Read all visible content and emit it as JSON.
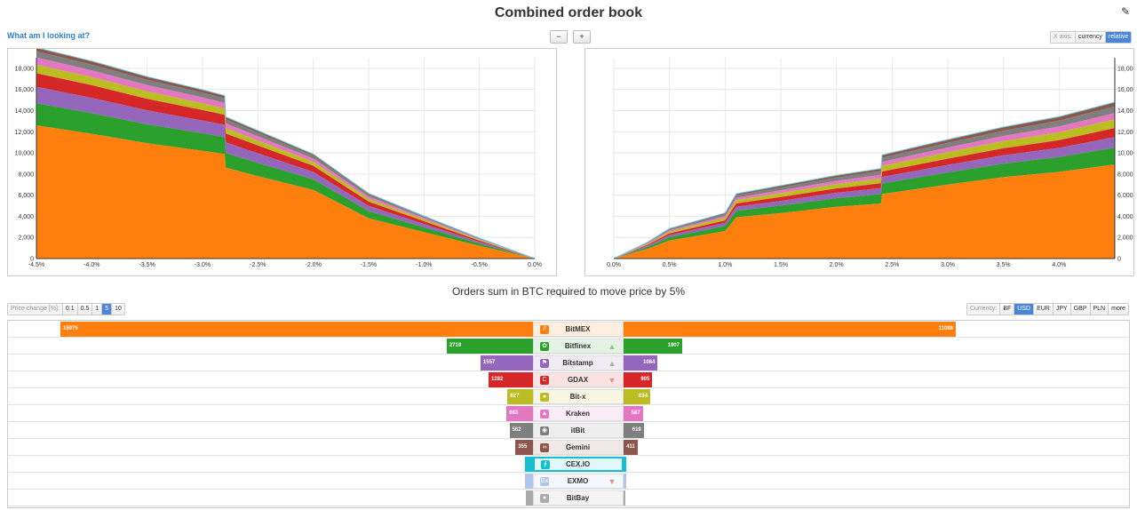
{
  "header": {
    "title": "Combined order book",
    "help_link": "What am I looking at?"
  },
  "toolbar": {
    "zoom_out_icon": "zoom-out-icon",
    "zoom_in_icon": "zoom-in-icon",
    "xaxis_label": "X axis:",
    "xaxis_options": [
      "currency",
      "relative"
    ],
    "xaxis_selected": "relative"
  },
  "bottom": {
    "subtitle": "Orders sum in BTC required to move price by 5%",
    "price_change_label": "Price change [%]:",
    "price_change_options": [
      "0.1",
      "0.5",
      "1",
      "5",
      "10"
    ],
    "price_change_selected": "5",
    "currency_label": "Currency:",
    "currency_options": [
      "ɃF",
      "USD",
      "EUR",
      "JPY",
      "GBP",
      "PLN",
      "more"
    ],
    "currency_selected": "USD"
  },
  "colors": {
    "BitMEX": "#ff7f0e",
    "Bitfinex": "#2ca02c",
    "Bitstamp": "#9467bd",
    "GDAX": "#d62728",
    "Bit-x": "#bcbd22",
    "Kraken": "#e377c2",
    "itBit": "#7f7f7f",
    "Gemini": "#8c564b",
    "CEX.IO": "#17becf",
    "EXMO": "#aec7e8",
    "BitBay": "#aaaaaa"
  },
  "chart_data": [
    {
      "type": "area",
      "side": "bids",
      "stacked": true,
      "xlabel": "",
      "ylabel": "",
      "xlim": [
        -4.5,
        0.0
      ],
      "ylim": [
        0,
        19000
      ],
      "x_ticks": [
        "-4.5%",
        "-4.0%",
        "-3.5%",
        "-3.0%",
        "-2.5%",
        "-2.0%",
        "-1.5%",
        "-1.0%",
        "-0.5%",
        "0.0%"
      ],
      "y_ticks": [
        "0",
        "2,000",
        "4,000",
        "6,000",
        "8,000",
        "10,000",
        "12,000",
        "14,000",
        "16,000",
        "18,000"
      ],
      "x": [
        -4.5,
        -4.0,
        -3.5,
        -3.0,
        -2.8,
        -2.79,
        -2.5,
        -2.0,
        -1.5,
        -1.0,
        -0.5,
        0.0
      ],
      "series": [
        {
          "name": "BitMEX",
          "values": [
            12600,
            11800,
            10900,
            10200,
            9900,
            8600,
            7800,
            6500,
            3800,
            2500,
            1200,
            0
          ]
        },
        {
          "name": "Bitfinex",
          "values": [
            2100,
            1950,
            1800,
            1650,
            1600,
            1400,
            1250,
            1000,
            700,
            450,
            220,
            0
          ]
        },
        {
          "name": "Bitstamp",
          "values": [
            1550,
            1450,
            1320,
            1200,
            1150,
            1000,
            900,
            700,
            480,
            320,
            150,
            0
          ]
        },
        {
          "name": "GDAX",
          "values": [
            1280,
            1200,
            1100,
            1000,
            950,
            820,
            740,
            580,
            400,
            260,
            120,
            0
          ]
        },
        {
          "name": "Bit-x",
          "values": [
            820,
            770,
            700,
            640,
            610,
            530,
            470,
            370,
            260,
            170,
            80,
            0
          ]
        },
        {
          "name": "Kraken",
          "values": [
            680,
            640,
            590,
            540,
            510,
            440,
            400,
            310,
            220,
            140,
            70,
            0
          ]
        },
        {
          "name": "itBit",
          "values": [
            580,
            540,
            500,
            460,
            430,
            380,
            340,
            260,
            190,
            120,
            60,
            0
          ]
        },
        {
          "name": "Gemini",
          "values": [
            350,
            330,
            300,
            280,
            260,
            230,
            210,
            160,
            110,
            70,
            35,
            0
          ]
        }
      ]
    },
    {
      "type": "area",
      "side": "asks",
      "stacked": true,
      "xlabel": "",
      "ylabel": "",
      "xlim": [
        0.0,
        4.5
      ],
      "ylim": [
        0,
        19000
      ],
      "x_ticks": [
        "0.0%",
        "0.5%",
        "1.0%",
        "1.5%",
        "2.0%",
        "2.5%",
        "3.0%",
        "3.5%",
        "4.0%"
      ],
      "y_ticks": [
        "0",
        "2,000",
        "4,000",
        "6,000",
        "8,000",
        "10,000",
        "12,000",
        "14,000",
        "16,000",
        "18,000"
      ],
      "x": [
        0.0,
        0.3,
        0.5,
        1.0,
        1.1,
        1.5,
        2.0,
        2.4,
        2.41,
        3.0,
        3.5,
        4.0,
        4.5
      ],
      "series": [
        {
          "name": "BitMEX",
          "values": [
            0,
            900,
            1700,
            2600,
            3900,
            4300,
            4900,
            5200,
            6100,
            7000,
            7700,
            8200,
            8900
          ]
        },
        {
          "name": "Bitfinex",
          "values": [
            0,
            180,
            320,
            480,
            620,
            720,
            820,
            900,
            1000,
            1150,
            1280,
            1400,
            1600
          ]
        },
        {
          "name": "Bitstamp",
          "values": [
            0,
            110,
            200,
            290,
            380,
            440,
            500,
            560,
            620,
            710,
            790,
            870,
            1000
          ]
        },
        {
          "name": "GDAX",
          "values": [
            0,
            90,
            160,
            240,
            310,
            360,
            410,
            460,
            510,
            590,
            660,
            730,
            850
          ]
        },
        {
          "name": "Bit-x",
          "values": [
            0,
            90,
            170,
            250,
            320,
            370,
            420,
            470,
            530,
            610,
            680,
            750,
            830
          ]
        },
        {
          "name": "Kraken",
          "values": [
            0,
            60,
            110,
            170,
            220,
            260,
            300,
            340,
            380,
            440,
            490,
            540,
            590
          ]
        },
        {
          "name": "itBit",
          "values": [
            0,
            60,
            110,
            170,
            230,
            270,
            310,
            350,
            390,
            450,
            500,
            560,
            620
          ]
        },
        {
          "name": "Gemini",
          "values": [
            0,
            40,
            70,
            110,
            150,
            180,
            210,
            240,
            270,
            310,
            340,
            370,
            410
          ]
        }
      ]
    },
    {
      "type": "bar",
      "orientation": "horizontal-butterfly",
      "categories": [
        "BitMEX",
        "Bitfinex",
        "Bitstamp",
        "GDAX",
        "Bit-x",
        "Kraken",
        "itBit",
        "Gemini",
        "CEX.IO",
        "EXMO",
        "BitBay"
      ],
      "series": [
        {
          "name": "bids",
          "values": [
            15975,
            2719,
            1557,
            1282,
            627,
            663,
            562,
            355,
            40,
            20,
            10
          ]
        },
        {
          "name": "asks",
          "values": [
            11088,
            1907,
            1084,
            905,
            834,
            587,
            619,
            411,
            30,
            15,
            8
          ]
        }
      ],
      "bid_labels": [
        "15975",
        "2719",
        "1557",
        "1282",
        "627",
        "663",
        "562",
        "355",
        "",
        "",
        ""
      ],
      "ask_labels": [
        "11088",
        "1907",
        "1084",
        "905",
        "834",
        "587",
        "619",
        "411",
        "",
        "",
        ""
      ],
      "trend": [
        "",
        "up",
        "up",
        "down",
        "",
        "",
        "",
        "",
        "",
        "down",
        ""
      ],
      "icons": [
        "bitmex-icon",
        "bitfinex-leaf-icon",
        "bitstamp-icon",
        "gdax-icon",
        "bitx-icon",
        "kraken-icon",
        "itbit-icon",
        "gemini-icon",
        "cexio-icon",
        "exmo-icon",
        "bitbay-icon"
      ]
    }
  ]
}
